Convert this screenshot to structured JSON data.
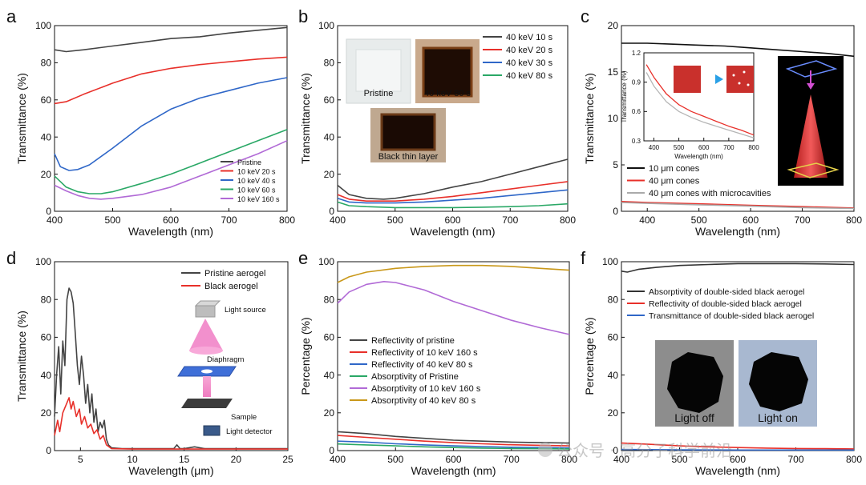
{
  "figure": {
    "watermark": "公众号 · 高分子科学前沿"
  },
  "chart_data": [
    {
      "panel": "a",
      "type": "line",
      "xlabel": "Wavelength (nm)",
      "ylabel": "Transmittance (%)",
      "xlim": [
        400,
        800
      ],
      "ylim": [
        0,
        100
      ],
      "xticks": [
        400,
        500,
        600,
        700,
        800
      ],
      "yticks": [
        0,
        20,
        40,
        60,
        80,
        100
      ],
      "legend": "bottom-right",
      "series": [
        {
          "name": "Pristine",
          "color": "#444444",
          "x": [
            400,
            420,
            450,
            500,
            550,
            600,
            650,
            700,
            750,
            800
          ],
          "y": [
            87,
            86,
            87,
            89,
            91,
            93,
            94,
            96,
            97.5,
            99
          ]
        },
        {
          "name": "10 keV 20 s",
          "color": "#e8302a",
          "x": [
            400,
            420,
            450,
            500,
            550,
            600,
            650,
            700,
            750,
            800
          ],
          "y": [
            58,
            59,
            63,
            69,
            74,
            77,
            79,
            80.5,
            82,
            83
          ]
        },
        {
          "name": "10 keV 40 s",
          "color": "#2f67c8",
          "x": [
            400,
            410,
            425,
            440,
            460,
            500,
            550,
            600,
            650,
            700,
            750,
            800
          ],
          "y": [
            31,
            24,
            22,
            22.5,
            25,
            34,
            46,
            55,
            61,
            65,
            69,
            72
          ]
        },
        {
          "name": "10 keV 60 s",
          "color": "#2aa866",
          "x": [
            400,
            420,
            440,
            460,
            480,
            500,
            550,
            600,
            650,
            700,
            750,
            800
          ],
          "y": [
            19,
            13,
            10.5,
            9.5,
            9.5,
            10.5,
            15,
            20,
            26,
            32,
            38,
            44
          ]
        },
        {
          "name": "10 keV 160 s",
          "color": "#b16ad6",
          "x": [
            400,
            420,
            440,
            460,
            480,
            500,
            550,
            600,
            650,
            700,
            750,
            800
          ],
          "y": [
            14,
            11,
            8.5,
            7,
            6.5,
            7,
            9,
            13,
            19,
            25,
            31,
            38
          ]
        }
      ]
    },
    {
      "panel": "b",
      "type": "line",
      "xlabel": "Wavelength (nm)",
      "ylabel": "Transmittance (%)",
      "xlim": [
        400,
        800
      ],
      "ylim": [
        0,
        100
      ],
      "xticks": [
        400,
        500,
        600,
        700,
        800
      ],
      "yticks": [
        0,
        20,
        40,
        60,
        80,
        100
      ],
      "legend": "top-right",
      "photo_labels": [
        "Pristine",
        "40 keV 80 s",
        "Black thin layer"
      ],
      "series": [
        {
          "name": "40 keV 10 s",
          "color": "#444444",
          "x": [
            400,
            420,
            450,
            480,
            500,
            550,
            600,
            650,
            700,
            750,
            800
          ],
          "y": [
            14,
            9,
            7,
            6.5,
            7,
            9.5,
            13,
            16,
            20,
            24,
            28
          ]
        },
        {
          "name": "40 keV 20 s",
          "color": "#e8302a",
          "x": [
            400,
            420,
            450,
            500,
            550,
            600,
            650,
            700,
            750,
            800
          ],
          "y": [
            9,
            6.5,
            5.5,
            5.5,
            6.5,
            8,
            10,
            12,
            14,
            16
          ]
        },
        {
          "name": "40 keV 30 s",
          "color": "#2f67c8",
          "x": [
            400,
            420,
            450,
            500,
            550,
            600,
            650,
            700,
            750,
            800
          ],
          "y": [
            7,
            5,
            4.5,
            4.5,
            5,
            6,
            7,
            8.5,
            10,
            11.5
          ]
        },
        {
          "name": "40 keV 80 s",
          "color": "#2aa866",
          "x": [
            400,
            420,
            450,
            500,
            550,
            600,
            650,
            700,
            750,
            800
          ],
          "y": [
            5,
            3,
            2.5,
            2,
            2,
            2,
            2.2,
            2.5,
            3,
            4
          ]
        }
      ]
    },
    {
      "panel": "c",
      "type": "line",
      "xlabel": "Wavelength (nm)",
      "ylabel": "Transmittance (%)",
      "xlim": [
        350,
        800
      ],
      "ylim": [
        0,
        20
      ],
      "xticks": [
        400,
        500,
        600,
        700,
        800
      ],
      "yticks": [
        0,
        5,
        10,
        15,
        20
      ],
      "legend": "bottom-left",
      "series": [
        {
          "name": "10 μm cones",
          "color": "#111111",
          "x": [
            350,
            400,
            450,
            500,
            550,
            600,
            650,
            700,
            750,
            800
          ],
          "y": [
            18.1,
            18.1,
            18.0,
            17.9,
            17.8,
            17.6,
            17.4,
            17.2,
            17.0,
            16.7
          ]
        },
        {
          "name": "40 μm cones",
          "color": "#e8302a",
          "x": [
            350,
            400,
            500,
            600,
            700,
            800
          ],
          "y": [
            1.05,
            0.95,
            0.8,
            0.65,
            0.5,
            0.35
          ]
        },
        {
          "name": "40 μm cones with microcavities",
          "color": "#aaaaaa",
          "x": [
            350,
            400,
            500,
            600,
            700,
            800
          ],
          "y": [
            0.95,
            0.85,
            0.7,
            0.55,
            0.4,
            0.3
          ]
        }
      ],
      "inset": {
        "xlabel": "Wavelength (nm)",
        "ylabel": "Transmittance (%)",
        "xlim": [
          360,
          800
        ],
        "ylim": [
          0.3,
          1.2
        ],
        "xticks": [
          400,
          500,
          600,
          700,
          800
        ],
        "yticks": [
          0.3,
          0.6,
          0.9,
          1.2
        ],
        "series": [
          {
            "color": "#e8302a",
            "x": [
              370,
              400,
              450,
              500,
              550,
              600,
              650,
              700,
              750,
              800
            ],
            "y": [
              1.08,
              0.95,
              0.78,
              0.67,
              0.6,
              0.55,
              0.5,
              0.45,
              0.41,
              0.36
            ]
          },
          {
            "color": "#b5b5b5",
            "x": [
              370,
              400,
              450,
              500,
              550,
              600,
              650,
              700,
              750,
              800
            ],
            "y": [
              1.0,
              0.86,
              0.7,
              0.6,
              0.54,
              0.49,
              0.45,
              0.41,
              0.37,
              0.33
            ]
          }
        ]
      }
    },
    {
      "panel": "d",
      "type": "line",
      "xlabel": "Wavelength (μm)",
      "ylabel": "Transmittance (%)",
      "xlim": [
        2.5,
        25
      ],
      "ylim": [
        0,
        100
      ],
      "xticks": [
        5,
        10,
        15,
        20,
        25
      ],
      "yticks": [
        0,
        20,
        40,
        60,
        80,
        100
      ],
      "legend": "top-right",
      "schematic_labels": [
        "Light source",
        "Diaphragm",
        "Sample",
        "Light detector"
      ],
      "series": [
        {
          "name": "Pristine aerogel",
          "color": "#444444",
          "x": [
            2.5,
            2.7,
            2.9,
            3.1,
            3.3,
            3.5,
            3.7,
            3.9,
            4.1,
            4.3,
            4.5,
            4.7,
            4.9,
            5.1,
            5.3,
            5.5,
            5.7,
            5.9,
            6.1,
            6.3,
            6.5,
            6.7,
            6.9,
            7.1,
            7.3,
            7.5,
            7.7,
            8,
            9,
            10,
            12,
            14,
            14.3,
            14.6,
            15,
            16,
            17,
            18,
            20,
            22,
            25
          ],
          "y": [
            18,
            40,
            55,
            30,
            58,
            45,
            80,
            86,
            84,
            78,
            62,
            45,
            35,
            50,
            40,
            25,
            35,
            20,
            30,
            15,
            22,
            10,
            15,
            12,
            16,
            6,
            3,
            1.5,
            1,
            1,
            1,
            1,
            3,
            1,
            1,
            2,
            1,
            1,
            1,
            1,
            1
          ]
        },
        {
          "name": "Black aerogel",
          "color": "#e8302a",
          "x": [
            2.5,
            2.8,
            3.0,
            3.3,
            3.6,
            3.9,
            4.1,
            4.3,
            4.6,
            4.9,
            5.1,
            5.4,
            5.7,
            6,
            6.3,
            6.6,
            6.9,
            7.2,
            7.5,
            8,
            10,
            15,
            20,
            25
          ],
          "y": [
            8,
            16,
            10,
            20,
            24,
            28,
            22,
            26,
            18,
            22,
            14,
            18,
            12,
            14,
            9,
            11,
            6,
            8,
            3,
            1,
            0.8,
            0.8,
            0.8,
            0.8
          ]
        }
      ]
    },
    {
      "panel": "e",
      "type": "line",
      "xlabel": "Wavelength (nm)",
      "ylabel": "Percentage (%)",
      "xlim": [
        400,
        800
      ],
      "ylim": [
        0,
        100
      ],
      "xticks": [
        400,
        500,
        600,
        700,
        800
      ],
      "yticks": [
        0,
        20,
        40,
        60,
        80,
        100
      ],
      "legend": "bottom-left",
      "series": [
        {
          "name": "Reflectivity of pristine",
          "color": "#444444",
          "x": [
            400,
            450,
            500,
            550,
            600,
            650,
            700,
            750,
            800
          ],
          "y": [
            10,
            9,
            7.5,
            6.5,
            5.5,
            5,
            4.5,
            4.2,
            4
          ]
        },
        {
          "name": "Reflectivity of 10 keV 160 s",
          "color": "#e8302a",
          "x": [
            400,
            450,
            500,
            550,
            600,
            650,
            700,
            750,
            800
          ],
          "y": [
            8,
            7,
            6,
            5,
            4.2,
            3.6,
            3.1,
            2.8,
            2.5
          ]
        },
        {
          "name": "Reflectivity of 40 keV 80 s",
          "color": "#2f67c8",
          "x": [
            400,
            450,
            500,
            550,
            600,
            650,
            700,
            750,
            800
          ],
          "y": [
            5,
            4.5,
            3.6,
            3,
            2.5,
            2.1,
            1.8,
            1.6,
            1.4
          ]
        },
        {
          "name": "Absorptivity of Pristine",
          "color": "#2aa866",
          "x": [
            400,
            450,
            500,
            550,
            600,
            650,
            700,
            750,
            800
          ],
          "y": [
            3.5,
            3,
            2.5,
            2,
            1.6,
            1.3,
            1.1,
            1,
            0.9
          ]
        },
        {
          "name": "Absorptivity of 10 keV 160 s",
          "color": "#b16ad6",
          "x": [
            400,
            420,
            450,
            480,
            500,
            550,
            600,
            650,
            700,
            750,
            800
          ],
          "y": [
            78,
            84,
            88,
            89.5,
            89,
            85,
            79,
            74,
            69,
            65,
            61.5
          ]
        },
        {
          "name": "Absorptivity of 40 keV 80 s",
          "color": "#c9981a",
          "x": [
            400,
            420,
            450,
            500,
            550,
            600,
            650,
            700,
            750,
            800
          ],
          "y": [
            89,
            92,
            94.5,
            96.5,
            97.5,
            98,
            98,
            97.5,
            96.5,
            95.5
          ]
        }
      ]
    },
    {
      "panel": "f",
      "type": "line",
      "xlabel": "Wavelength (nm)",
      "ylabel": "Percentage (%)",
      "xlim": [
        400,
        800
      ],
      "ylim": [
        0,
        100
      ],
      "xticks": [
        400,
        500,
        600,
        700,
        800
      ],
      "yticks": [
        0,
        20,
        40,
        60,
        80,
        100
      ],
      "legend": "top-left",
      "photo_labels": [
        "Light off",
        "Light on"
      ],
      "series": [
        {
          "name": "Absorptivity of double-sided black aerogel",
          "color": "#333333",
          "x": [
            400,
            410,
            430,
            460,
            500,
            550,
            600,
            650,
            700,
            750,
            800
          ],
          "y": [
            95,
            94.5,
            96,
            97,
            98,
            98.5,
            99,
            99,
            99,
            98.8,
            98.5
          ]
        },
        {
          "name": "Reflectivity of double-sided black aerogel",
          "color": "#e8302a",
          "x": [
            400,
            450,
            500,
            550,
            600,
            650,
            700,
            750,
            800
          ],
          "y": [
            4,
            3.3,
            2.5,
            2,
            1.6,
            1.3,
            1.1,
            1,
            0.9
          ]
        },
        {
          "name": "Transmittance of double-sided black aerogel",
          "color": "#2f67c8",
          "x": [
            400,
            450,
            500,
            550,
            600,
            650,
            700,
            750,
            800
          ],
          "y": [
            0.6,
            0.5,
            0.4,
            0.35,
            0.3,
            0.3,
            0.3,
            0.3,
            0.3
          ]
        }
      ]
    }
  ]
}
